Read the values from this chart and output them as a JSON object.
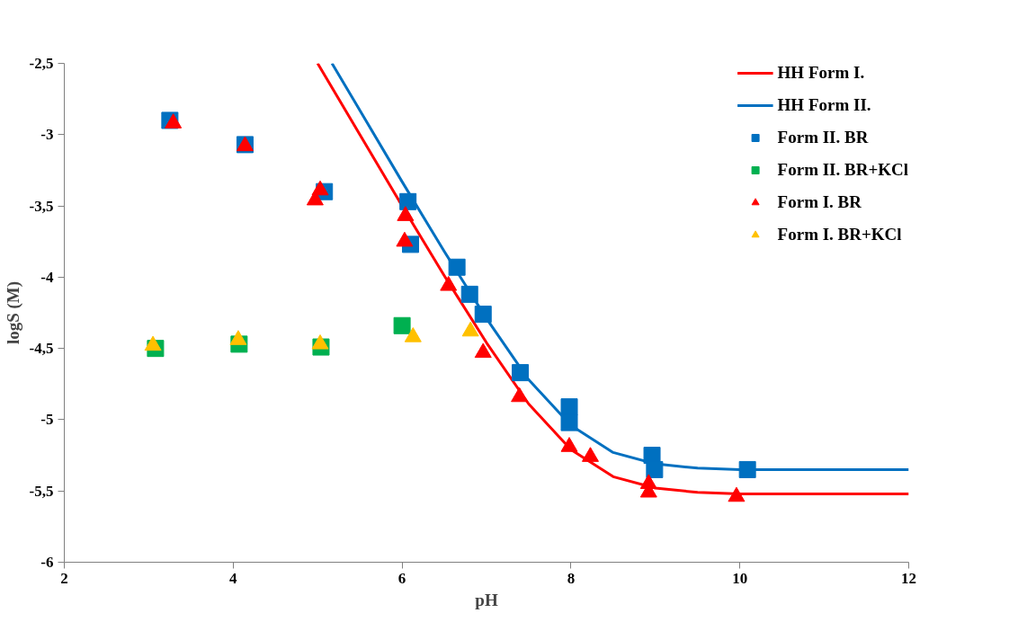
{
  "chart_data": {
    "type": "scatter",
    "xlabel": "pH",
    "ylabel": "logS (M)",
    "xlim": [
      2,
      12
    ],
    "xticks": [
      2,
      4,
      6,
      8,
      10,
      12
    ],
    "ylim": [
      -6,
      -2.5
    ],
    "yticks": [
      {
        "value": -6,
        "label": "-6"
      },
      {
        "value": -5.5,
        "label": "-5,5"
      },
      {
        "value": -5,
        "label": "-5"
      },
      {
        "value": -4.5,
        "label": "-4,5"
      },
      {
        "value": -4,
        "label": "-4"
      },
      {
        "value": -3.5,
        "label": "-3,5"
      },
      {
        "value": -3,
        "label": "-3"
      },
      {
        "value": -2.5,
        "label": "-2,5"
      }
    ],
    "grid": false,
    "legend": "top right",
    "series": [
      {
        "name": "HH Form I.",
        "type": "line",
        "color": "#ff0000",
        "marker": "none",
        "line_style": "solid",
        "x": [
          5.0,
          5.5,
          6.0,
          6.5,
          7.0,
          7.5,
          8.0,
          8.5,
          9.0,
          9.5,
          10.0,
          12.0
        ],
        "values": [
          -2.5,
          -3.0,
          -3.5,
          -3.99,
          -4.46,
          -4.89,
          -5.21,
          -5.4,
          -5.48,
          -5.51,
          -5.52,
          -5.52
        ]
      },
      {
        "name": "HH Form II.",
        "type": "line",
        "color": "#0070c0",
        "marker": "none",
        "line_style": "solid",
        "x": [
          5.17,
          5.5,
          6.0,
          6.5,
          7.0,
          7.5,
          8.0,
          8.5,
          9.0,
          9.5,
          10.0,
          12.0
        ],
        "values": [
          -2.5,
          -2.83,
          -3.33,
          -3.82,
          -4.29,
          -4.72,
          -5.04,
          -5.23,
          -5.31,
          -5.34,
          -5.35,
          -5.35
        ]
      },
      {
        "name": "Form II. BR",
        "color": "#0070c0",
        "marker": "square",
        "x": [
          3.25,
          4.14,
          5.08,
          6.07,
          6.1,
          6.65,
          6.8,
          6.96,
          7.4,
          7.98,
          7.98,
          8.96,
          8.99,
          10.09
        ],
        "values": [
          -2.9,
          -3.07,
          -3.4,
          -3.47,
          -3.77,
          -3.93,
          -4.12,
          -4.26,
          -4.67,
          -4.91,
          -5.02,
          -5.25,
          -5.35,
          -5.35
        ]
      },
      {
        "name": "Form II. BR+KCl",
        "color": "#00b050",
        "marker": "square",
        "x": [
          3.08,
          4.07,
          5.04,
          6.0
        ],
        "values": [
          -4.5,
          -4.47,
          -4.49,
          -4.34
        ]
      },
      {
        "name": "Form I. BR",
        "color": "#ff0000",
        "marker": "triangle",
        "x": [
          3.29,
          4.14,
          5.03,
          4.97,
          6.04,
          6.03,
          6.55,
          6.96,
          7.39,
          7.98,
          8.23,
          8.92,
          8.92,
          9.96
        ],
        "values": [
          -2.92,
          -3.08,
          -3.39,
          -3.46,
          -3.57,
          -3.75,
          -4.06,
          -4.53,
          -4.84,
          -5.19,
          -5.26,
          -5.45,
          -5.51,
          -5.54
        ]
      },
      {
        "name": "Form I. BR+KCl",
        "color": "#ffc000",
        "marker": "triangle",
        "x": [
          3.05,
          4.06,
          5.03,
          6.13,
          6.81
        ],
        "values": [
          -4.48,
          -4.44,
          -4.47,
          -4.42,
          -4.38
        ]
      }
    ]
  }
}
